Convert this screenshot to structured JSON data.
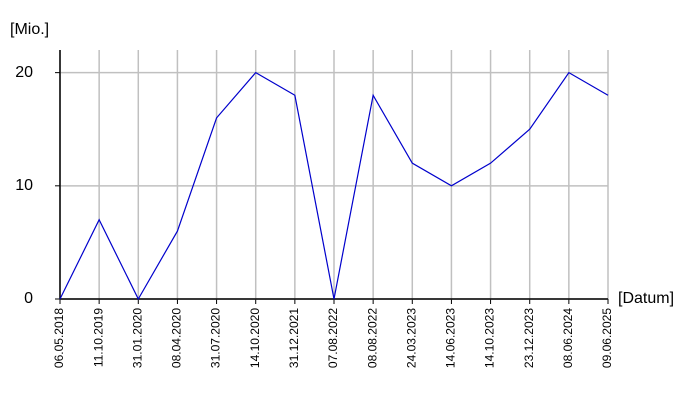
{
  "chart_data": {
    "type": "line",
    "x_label": "[Datum]",
    "y_label": "[Mio.]",
    "categories": [
      "06.05.2018",
      "11.10.2019",
      "31.01.2020",
      "08.04.2020",
      "31.07.2020",
      "14.10.2020",
      "31.12.2021",
      "07.08.2022",
      "08.08.2022",
      "24.03.2023",
      "14.06.2023",
      "14.10.2023",
      "23.12.2023",
      "08.06.2024",
      "09.06.2025"
    ],
    "values": [
      0,
      7,
      0,
      6,
      16,
      20,
      18,
      0,
      18,
      12,
      10,
      12,
      15,
      20,
      18
    ],
    "color": "#0000cc",
    "ylim": [
      0,
      22
    ],
    "yticks": [
      0,
      10,
      20
    ],
    "grid": true
  }
}
